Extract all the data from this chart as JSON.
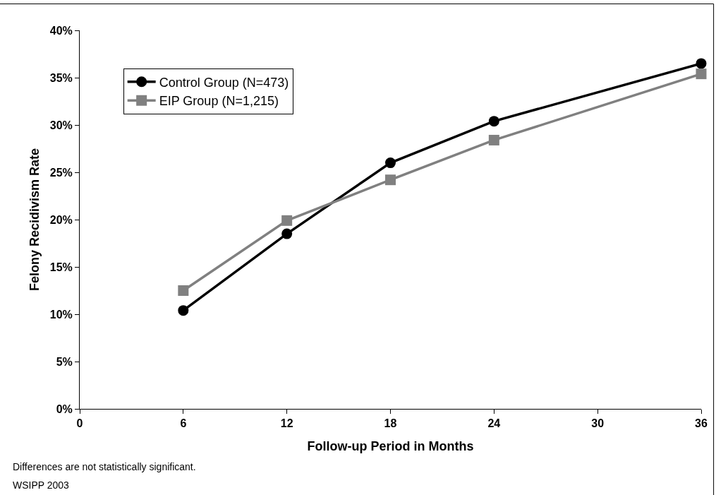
{
  "chart_data": {
    "type": "line",
    "xlabel": "Follow-up Period in Months",
    "ylabel": "Felony Recidivism Rate",
    "x": [
      6,
      12,
      18,
      24,
      36
    ],
    "series": [
      {
        "name": "Control Group (N=473)",
        "color": "#000000",
        "marker": "circle",
        "values": [
          10.4,
          18.5,
          26.0,
          30.4,
          36.5
        ]
      },
      {
        "name": "EIP Group (N=1,215)",
        "color": "#808080",
        "marker": "square",
        "values": [
          12.5,
          19.9,
          24.2,
          28.4,
          35.4
        ]
      }
    ],
    "xlim": [
      0,
      36
    ],
    "xticks": [
      0,
      6,
      12,
      18,
      24,
      30,
      36
    ],
    "ylim": [
      0,
      40
    ],
    "yticks": [
      {
        "value": 0,
        "label": "0%"
      },
      {
        "value": 5,
        "label": "5%"
      },
      {
        "value": 10,
        "label": "10%"
      },
      {
        "value": 15,
        "label": "15%"
      },
      {
        "value": 20,
        "label": "20%"
      },
      {
        "value": 25,
        "label": "25%"
      },
      {
        "value": 30,
        "label": "30%"
      },
      {
        "value": 35,
        "label": "35%"
      },
      {
        "value": 40,
        "label": "40%"
      }
    ],
    "legend": "top left",
    "line_style": "solid",
    "annotations": [
      "Differences are not statistically significant.",
      "WSIPP 2003"
    ]
  }
}
